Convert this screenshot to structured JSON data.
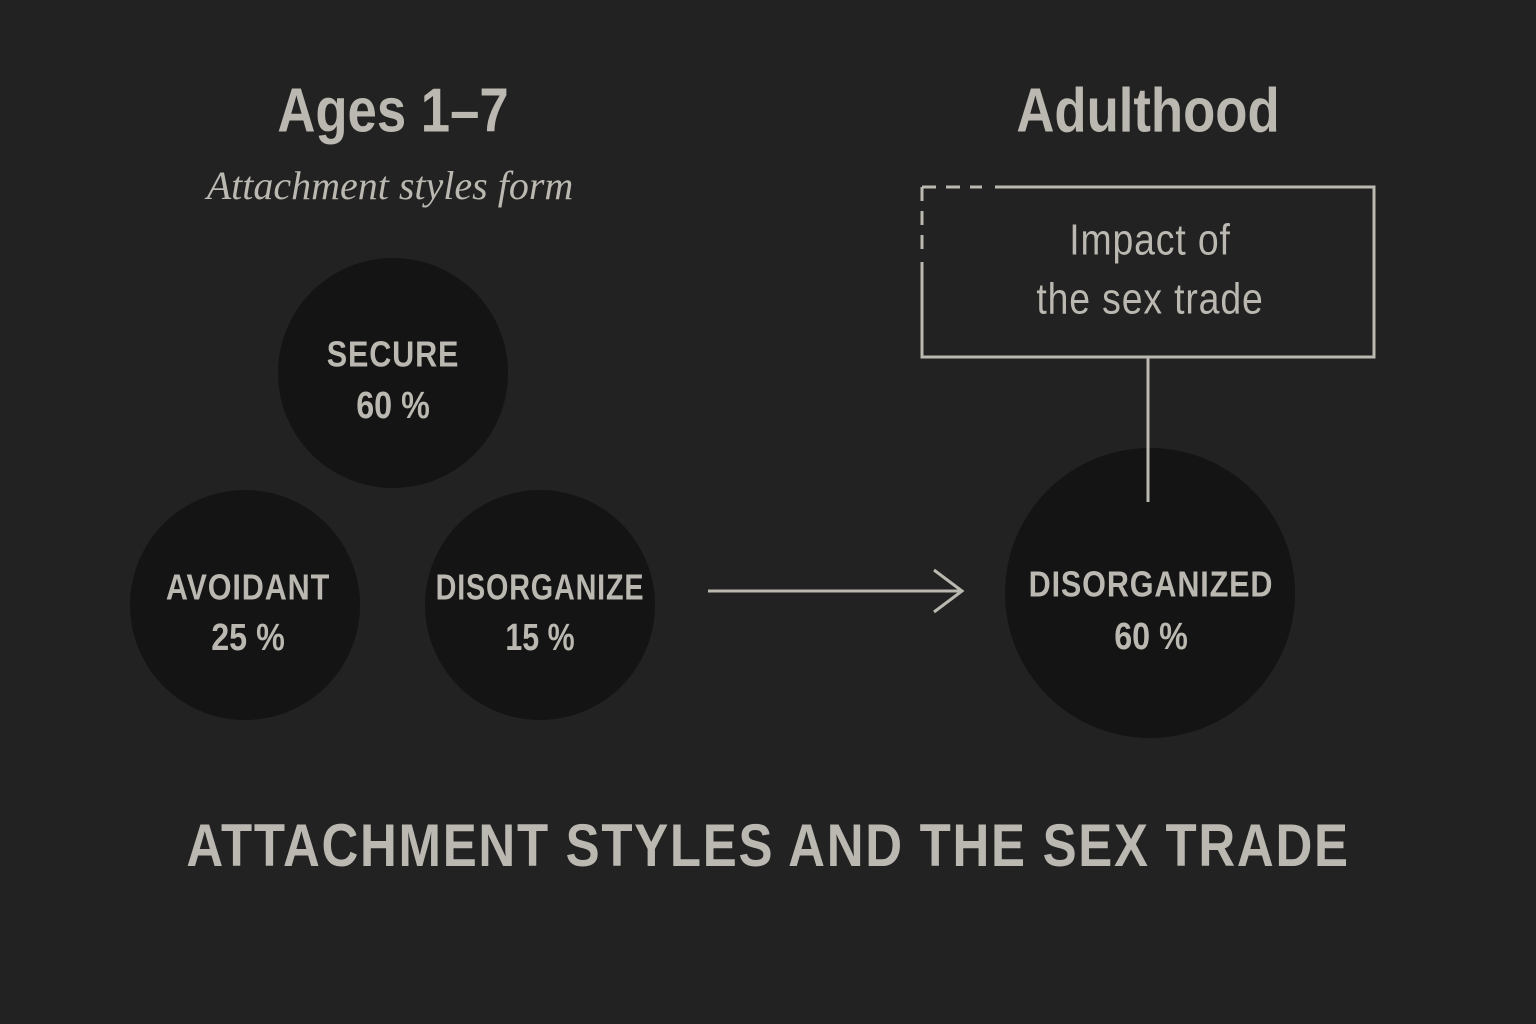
{
  "left": {
    "title": "Ages 1–7",
    "subtitle": "Attachment styles form",
    "nodes": [
      {
        "label": "SECURE",
        "value": "60 %"
      },
      {
        "label": "AVOIDANT",
        "value": "25 %"
      },
      {
        "label": "DISORGANIZE",
        "value": "15 %"
      }
    ]
  },
  "right": {
    "title": "Adulthood",
    "box_lines": [
      "Impact of",
      "the sex trade"
    ],
    "node": {
      "label": "DISORGANIZED",
      "value": "60 %"
    }
  },
  "footer": "ATTACHMENT STYLES AND THE SEX TRADE"
}
